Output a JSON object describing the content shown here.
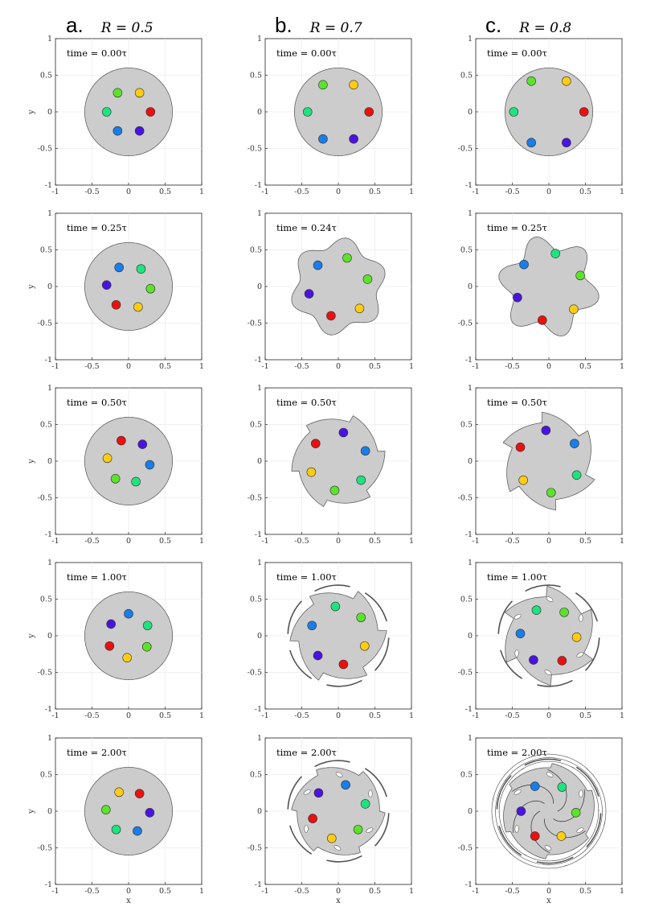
{
  "columns": [
    {
      "letter": "a.",
      "r_label": "R = 0.5"
    },
    {
      "letter": "b.",
      "r_label": "R = 0.7"
    },
    {
      "letter": "c.",
      "r_label": "R = 0.8"
    }
  ],
  "axis_tick_labels": [
    "-1",
    "-0.5",
    "0",
    "0.5",
    "1"
  ],
  "axis_labels": {
    "x": "x",
    "y": "y"
  },
  "colors": {
    "red": "#e8110f",
    "orange": "#ffcc14",
    "green": "#5be32b",
    "cyan": "#1ee37e",
    "blue": "#1a7de8",
    "violet": "#4a14e0",
    "blob_fill": "#cccccc",
    "blob_stroke": "#555555"
  },
  "chart_data": {
    "type": "scatter",
    "title": "",
    "xlabel": "x",
    "ylabel": "y",
    "xlim": [
      -1,
      1
    ],
    "ylim": [
      -1,
      1
    ],
    "grid": true,
    "panels": [
      {
        "column": "a",
        "row": 0,
        "R": 0.5,
        "time": "time = 0.00τ",
        "blob": {
          "type": "circle",
          "radius": 0.6
        },
        "particles": [
          {
            "color": "red",
            "x": 0.3,
            "y": 0.0
          },
          {
            "color": "orange",
            "x": 0.15,
            "y": 0.26
          },
          {
            "color": "green",
            "x": -0.15,
            "y": 0.26
          },
          {
            "color": "cyan",
            "x": -0.3,
            "y": 0.0
          },
          {
            "color": "blue",
            "x": -0.15,
            "y": -0.26
          },
          {
            "color": "violet",
            "x": 0.15,
            "y": -0.26
          }
        ]
      },
      {
        "column": "a",
        "row": 1,
        "R": 0.5,
        "time": "time = 0.25τ",
        "blob": {
          "type": "circle",
          "radius": 0.6
        },
        "particles": [
          {
            "color": "blue",
            "x": -0.13,
            "y": 0.26
          },
          {
            "color": "cyan",
            "x": 0.17,
            "y": 0.24
          },
          {
            "color": "green",
            "x": 0.3,
            "y": -0.03
          },
          {
            "color": "orange",
            "x": 0.13,
            "y": -0.28
          },
          {
            "color": "red",
            "x": -0.17,
            "y": -0.25
          },
          {
            "color": "violet",
            "x": -0.3,
            "y": 0.02
          }
        ]
      },
      {
        "column": "a",
        "row": 2,
        "R": 0.5,
        "time": "time = 0.50τ",
        "blob": {
          "type": "circle",
          "radius": 0.6
        },
        "particles": [
          {
            "color": "red",
            "x": -0.1,
            "y": 0.28
          },
          {
            "color": "violet",
            "x": 0.19,
            "y": 0.23
          },
          {
            "color": "blue",
            "x": 0.29,
            "y": -0.05
          },
          {
            "color": "cyan",
            "x": 0.1,
            "y": -0.28
          },
          {
            "color": "green",
            "x": -0.18,
            "y": -0.24
          },
          {
            "color": "orange",
            "x": -0.29,
            "y": 0.04
          }
        ]
      },
      {
        "column": "a",
        "row": 3,
        "R": 0.5,
        "time": "time = 1.00τ",
        "blob": {
          "type": "circle",
          "radius": 0.6
        },
        "particles": [
          {
            "color": "blue",
            "x": 0.0,
            "y": 0.3
          },
          {
            "color": "cyan",
            "x": 0.26,
            "y": 0.14
          },
          {
            "color": "green",
            "x": 0.25,
            "y": -0.15
          },
          {
            "color": "orange",
            "x": -0.02,
            "y": -0.3
          },
          {
            "color": "red",
            "x": -0.26,
            "y": -0.14
          },
          {
            "color": "violet",
            "x": -0.24,
            "y": 0.16
          }
        ]
      },
      {
        "column": "a",
        "row": 4,
        "R": 0.5,
        "time": "time = 2.00τ",
        "blob": {
          "type": "circle",
          "radius": 0.6
        },
        "particles": [
          {
            "color": "orange",
            "x": -0.13,
            "y": 0.26
          },
          {
            "color": "red",
            "x": 0.15,
            "y": 0.24
          },
          {
            "color": "violet",
            "x": 0.29,
            "y": -0.02
          },
          {
            "color": "blue",
            "x": 0.12,
            "y": -0.27
          },
          {
            "color": "cyan",
            "x": -0.17,
            "y": -0.25
          },
          {
            "color": "green",
            "x": -0.31,
            "y": 0.02
          }
        ]
      },
      {
        "column": "b",
        "row": 0,
        "R": 0.7,
        "time": "time = 0.00τ",
        "blob": {
          "type": "circle",
          "radius": 0.6
        },
        "particles": [
          {
            "color": "red",
            "x": 0.42,
            "y": 0.0
          },
          {
            "color": "orange",
            "x": 0.21,
            "y": 0.37
          },
          {
            "color": "green",
            "x": -0.21,
            "y": 0.37
          },
          {
            "color": "cyan",
            "x": -0.42,
            "y": 0.0
          },
          {
            "color": "blue",
            "x": -0.21,
            "y": -0.37
          },
          {
            "color": "violet",
            "x": 0.21,
            "y": -0.37
          }
        ]
      },
      {
        "column": "b",
        "row": 1,
        "R": 0.7,
        "time": "time = 0.24τ",
        "blob": {
          "type": "wavy",
          "radius": 0.6,
          "lobes": 6,
          "amplitude": 0.07
        },
        "particles": [
          {
            "color": "blue",
            "x": -0.28,
            "y": 0.29
          },
          {
            "color": "green",
            "x": 0.12,
            "y": 0.39
          },
          {
            "color": "green",
            "x": 0.4,
            "y": 0.1
          },
          {
            "color": "orange",
            "x": 0.29,
            "y": -0.3
          },
          {
            "color": "red",
            "x": -0.1,
            "y": -0.4
          },
          {
            "color": "violet",
            "x": -0.4,
            "y": -0.1
          }
        ]
      },
      {
        "column": "b",
        "row": 2,
        "R": 0.7,
        "time": "time = 0.50τ",
        "blob": {
          "type": "swirl",
          "radius": 0.6,
          "lobes": 6,
          "amplitude": 0.1
        },
        "particles": [
          {
            "color": "violet",
            "x": 0.07,
            "y": 0.39
          },
          {
            "color": "blue",
            "x": 0.37,
            "y": 0.14
          },
          {
            "color": "cyan",
            "x": 0.31,
            "y": -0.26
          },
          {
            "color": "green",
            "x": -0.05,
            "y": -0.4
          },
          {
            "color": "orange",
            "x": -0.37,
            "y": -0.15
          },
          {
            "color": "red",
            "x": -0.31,
            "y": 0.24
          }
        ]
      },
      {
        "column": "b",
        "row": 3,
        "R": 0.7,
        "time": "time = 1.00τ",
        "blob": {
          "type": "swirl",
          "radius": 0.6,
          "lobes": 6,
          "amplitude": 0.12,
          "filaments": true
        },
        "particles": [
          {
            "color": "cyan",
            "x": -0.04,
            "y": 0.4
          },
          {
            "color": "green",
            "x": 0.31,
            "y": 0.25
          },
          {
            "color": "orange",
            "x": 0.36,
            "y": -0.14
          },
          {
            "color": "red",
            "x": 0.07,
            "y": -0.39
          },
          {
            "color": "violet",
            "x": -0.28,
            "y": -0.27
          },
          {
            "color": "blue",
            "x": -0.36,
            "y": 0.14
          }
        ]
      },
      {
        "column": "b",
        "row": 4,
        "R": 0.7,
        "time": "time = 2.00τ",
        "blob": {
          "type": "swirl",
          "radius": 0.6,
          "lobes": 6,
          "amplitude": 0.08,
          "filaments": true,
          "holes": true
        },
        "particles": [
          {
            "color": "blue",
            "x": 0.1,
            "y": 0.36
          },
          {
            "color": "cyan",
            "x": 0.37,
            "y": 0.1
          },
          {
            "color": "green",
            "x": 0.27,
            "y": -0.25
          },
          {
            "color": "orange",
            "x": -0.09,
            "y": -0.37
          },
          {
            "color": "red",
            "x": -0.35,
            "y": -0.1
          },
          {
            "color": "violet",
            "x": -0.27,
            "y": 0.25
          }
        ]
      },
      {
        "column": "c",
        "row": 0,
        "R": 0.8,
        "time": "time = 0.00τ",
        "blob": {
          "type": "circle",
          "radius": 0.6
        },
        "particles": [
          {
            "color": "red",
            "x": 0.48,
            "y": 0.0
          },
          {
            "color": "orange",
            "x": 0.24,
            "y": 0.42
          },
          {
            "color": "green",
            "x": -0.24,
            "y": 0.42
          },
          {
            "color": "cyan",
            "x": -0.48,
            "y": 0.0
          },
          {
            "color": "blue",
            "x": -0.24,
            "y": -0.42
          },
          {
            "color": "violet",
            "x": 0.24,
            "y": -0.42
          }
        ]
      },
      {
        "column": "c",
        "row": 1,
        "R": 0.8,
        "time": "time = 0.25τ",
        "blob": {
          "type": "wavy",
          "radius": 0.6,
          "lobes": 6,
          "amplitude": 0.1
        },
        "particles": [
          {
            "color": "blue",
            "x": -0.34,
            "y": 0.3
          },
          {
            "color": "cyan",
            "x": 0.09,
            "y": 0.45
          },
          {
            "color": "green",
            "x": 0.43,
            "y": 0.15
          },
          {
            "color": "orange",
            "x": 0.34,
            "y": -0.31
          },
          {
            "color": "red",
            "x": -0.09,
            "y": -0.46
          },
          {
            "color": "violet",
            "x": -0.43,
            "y": -0.15
          }
        ]
      },
      {
        "column": "c",
        "row": 2,
        "R": 0.8,
        "time": "time = 0.50τ",
        "blob": {
          "type": "swirl",
          "radius": 0.6,
          "lobes": 6,
          "amplitude": 0.15
        },
        "particles": [
          {
            "color": "violet",
            "x": -0.04,
            "y": 0.42
          },
          {
            "color": "blue",
            "x": 0.35,
            "y": 0.24
          },
          {
            "color": "cyan",
            "x": 0.38,
            "y": -0.19
          },
          {
            "color": "green",
            "x": 0.03,
            "y": -0.43
          },
          {
            "color": "orange",
            "x": -0.35,
            "y": -0.26
          },
          {
            "color": "red",
            "x": -0.39,
            "y": 0.19
          }
        ]
      },
      {
        "column": "c",
        "row": 3,
        "R": 0.8,
        "time": "time = 1.00τ",
        "blob": {
          "type": "swirl",
          "radius": 0.6,
          "lobes": 6,
          "amplitude": 0.15,
          "filaments": true,
          "holes": true
        },
        "particles": [
          {
            "color": "cyan",
            "x": -0.17,
            "y": 0.35
          },
          {
            "color": "green",
            "x": 0.21,
            "y": 0.32
          },
          {
            "color": "orange",
            "x": 0.38,
            "y": -0.02
          },
          {
            "color": "red",
            "x": 0.18,
            "y": -0.34
          },
          {
            "color": "violet",
            "x": -0.21,
            "y": -0.33
          },
          {
            "color": "blue",
            "x": -0.39,
            "y": 0.03
          }
        ]
      },
      {
        "column": "c",
        "row": 4,
        "R": 0.8,
        "time": "time = 2.00τ",
        "blob": {
          "type": "swirl",
          "radius": 0.62,
          "lobes": 6,
          "amplitude": 0.06,
          "filaments": true,
          "holes": true,
          "spirals": true
        },
        "particles": [
          {
            "color": "blue",
            "x": -0.19,
            "y": 0.34
          },
          {
            "color": "cyan",
            "x": 0.18,
            "y": 0.33
          },
          {
            "color": "green",
            "x": 0.37,
            "y": -0.02
          },
          {
            "color": "orange",
            "x": 0.17,
            "y": -0.34
          },
          {
            "color": "red",
            "x": -0.19,
            "y": -0.34
          },
          {
            "color": "violet",
            "x": -0.38,
            "y": 0.0
          }
        ]
      }
    ]
  }
}
